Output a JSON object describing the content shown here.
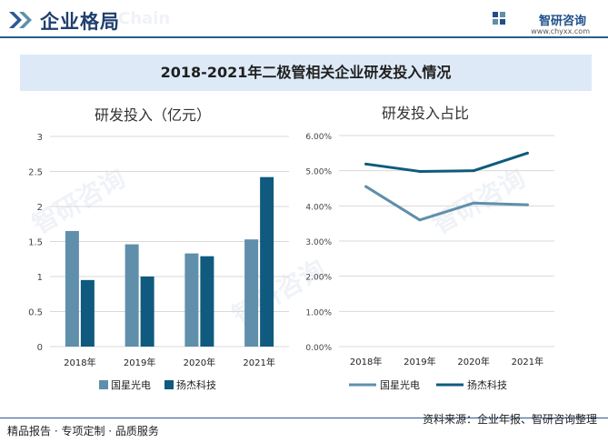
{
  "header": {
    "title": "企业格局",
    "brand": "智研咨询",
    "brand_url": "www.chyxx.com"
  },
  "banner": {
    "title": "2018-2021年二极管相关企业研发投入情况"
  },
  "footer": {
    "left": "精品报告 · 专项定制 · 品质服务",
    "source": "资料来源：企业年报、智研咨询整理"
  },
  "watermarks": {
    "big": "智研咨询",
    "chain": "Chain"
  },
  "chart_data": [
    {
      "type": "bar",
      "title": "研发投入（亿元）",
      "categories": [
        "2018年",
        "2019年",
        "2020年",
        "2021年"
      ],
      "series": [
        {
          "name": "国星光电",
          "values": [
            1.65,
            1.46,
            1.33,
            1.53
          ],
          "color": "#5f8fab"
        },
        {
          "name": "扬杰科技",
          "values": [
            0.95,
            1.0,
            1.29,
            2.42
          ],
          "color": "#0f5a7e"
        }
      ],
      "ylim": [
        0,
        3
      ],
      "yticks": [
        "0",
        "0.5",
        "1",
        "1.5",
        "2",
        "2.5",
        "3"
      ],
      "grid": true,
      "legend": "bottom"
    },
    {
      "type": "line",
      "title": "研发投入占比",
      "categories": [
        "2018年",
        "2019年",
        "2020年",
        "2021年"
      ],
      "series": [
        {
          "name": "国星光电",
          "values": [
            4.55,
            3.6,
            4.08,
            4.03
          ],
          "color": "#5f8fab"
        },
        {
          "name": "扬杰科技",
          "values": [
            5.19,
            4.98,
            5.0,
            5.5
          ],
          "color": "#0f5a7e"
        }
      ],
      "ylim": [
        0,
        6
      ],
      "yticks": [
        "0.00%",
        "1.00%",
        "2.00%",
        "3.00%",
        "4.00%",
        "5.00%",
        "6.00%"
      ],
      "grid": true,
      "legend": "bottom"
    }
  ]
}
